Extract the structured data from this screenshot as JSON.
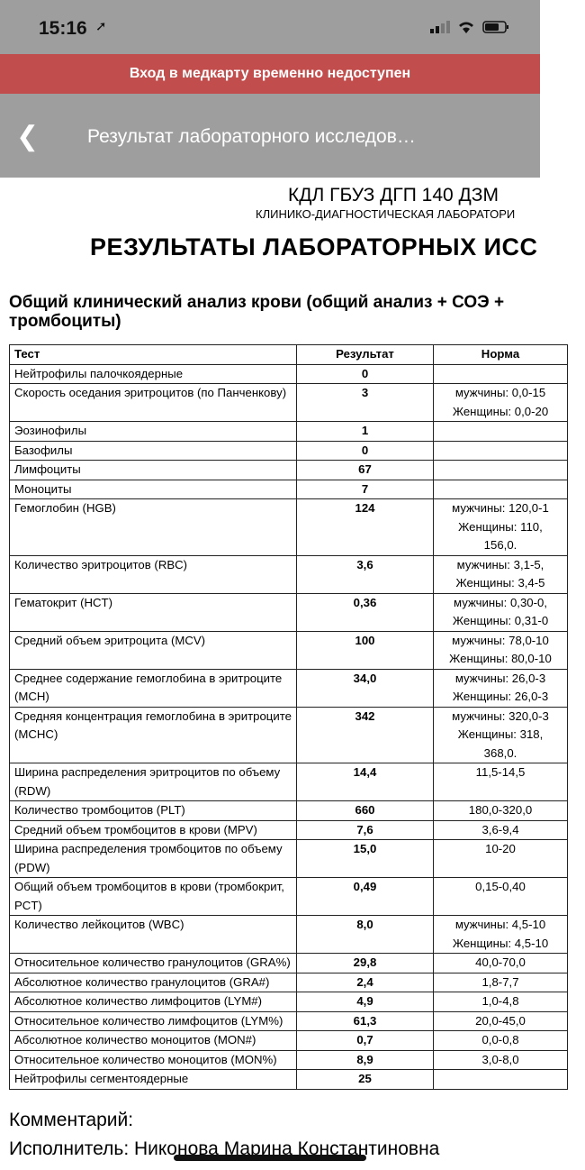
{
  "status_bar": {
    "time": "15:16",
    "icons": [
      "location-arrow-icon",
      "signal-icon",
      "wifi-icon",
      "battery-icon"
    ]
  },
  "banner": {
    "text": "Вход в медкарту временно недоступен",
    "color": "#c24d4d"
  },
  "nav": {
    "title": "Результат лабораторного исследов…",
    "back_icon": "chevron-left-icon"
  },
  "document": {
    "org": "КДЛ ГБУЗ ДГП 140 ДЗМ",
    "org_sub": "КЛИНИКО-ДИАГНОСТИЧЕСКАЯ ЛАБОРАТОРИ",
    "heading": "РЕЗУЛЬТАТЫ ЛАБОРАТОРНЫХ ИСС",
    "analysis_title": "Общий клинический анализ крови (общий анализ + СОЭ + тромбоциты)",
    "columns": [
      "Тест",
      "Результат",
      "Норма"
    ],
    "rows": [
      {
        "test": "Нейтрофилы палочкоядерные",
        "result": "0",
        "norm": ""
      },
      {
        "test": "Скорость оседания эритроцитов (по Панченкову)",
        "result": "3",
        "norm": "мужчины: 0,0-15\nЖенщины: 0,0-20"
      },
      {
        "test": "Эозинофилы",
        "result": "1",
        "norm": ""
      },
      {
        "test": "Базофилы",
        "result": "0",
        "norm": ""
      },
      {
        "test": "Лимфоциты",
        "result": "67",
        "norm": ""
      },
      {
        "test": "Моноциты",
        "result": "7",
        "norm": ""
      },
      {
        "test": "Гемоглобин (HGB)",
        "result": "124",
        "norm": "мужчины: 120,0-1\nЖенщины: 110,\n156,0."
      },
      {
        "test": "Количество эритроцитов (RBC)",
        "result": "3,6",
        "norm": "мужчины: 3,1-5,\nЖенщины: 3,4-5"
      },
      {
        "test": "Гематокрит (HCT)",
        "result": "0,36",
        "norm": "мужчины: 0,30-0,\nЖенщины: 0,31-0"
      },
      {
        "test": "Средний объем эритроцита (MCV)",
        "result": "100",
        "norm": "мужчины: 78,0-10\nЖенщины: 80,0-10"
      },
      {
        "test": "Среднее содержание гемоглобина в эритроците (MCH)",
        "result": "34,0",
        "norm": "мужчины: 26,0-3\nЖенщины: 26,0-3"
      },
      {
        "test": "Средняя концентрация гемоглобина в эритроците (MCHC)",
        "result": "342",
        "norm": "мужчины: 320,0-3\nЖенщины: 318,\n368,0."
      },
      {
        "test": "Ширина распределения эритроцитов по объему (RDW)",
        "result": "14,4",
        "norm": "11,5-14,5"
      },
      {
        "test": "Количество тромбоцитов (PLT)",
        "result": "660",
        "norm": "180,0-320,0"
      },
      {
        "test": "Средний объем тромбоцитов в крови (MPV)",
        "result": "7,6",
        "norm": "3,6-9,4"
      },
      {
        "test": "Ширина распределения тромбоцитов по объему (PDW)",
        "result": "15,0",
        "norm": "10-20"
      },
      {
        "test": "Общий объем тромбоцитов в крови (тромбокрит, PCT)",
        "result": "0,49",
        "norm": "0,15-0,40"
      },
      {
        "test": "Количество лейкоцитов (WBC)",
        "result": "8,0",
        "norm": "мужчины: 4,5-10\nЖенщины: 4,5-10"
      },
      {
        "test": "Относительное количество гранулоцитов (GRA%)",
        "result": "29,8",
        "norm": "40,0-70,0"
      },
      {
        "test": "Абсолютное количество гранулоцитов (GRA#)",
        "result": "2,4",
        "norm": "1,8-7,7"
      },
      {
        "test": "Абсолютное количество лимфоцитов (LYM#)",
        "result": "4,9",
        "norm": "1,0-4,8"
      },
      {
        "test": "Относительное количество лимфоцитов (LYM%)",
        "result": "61,3",
        "norm": "20,0-45,0"
      },
      {
        "test": "Абсолютное количество моноцитов (MON#)",
        "result": "0,7",
        "norm": "0,0-0,8"
      },
      {
        "test": "Относительное количество моноцитов (MON%)",
        "result": "8,9",
        "norm": "3,0-8,0"
      },
      {
        "test": "Нейтрофилы сегментоядерные",
        "result": "25",
        "norm": ""
      }
    ],
    "comment": "Комментарий:",
    "executor": "Исполнитель: Никонова Марина Константиновна"
  }
}
